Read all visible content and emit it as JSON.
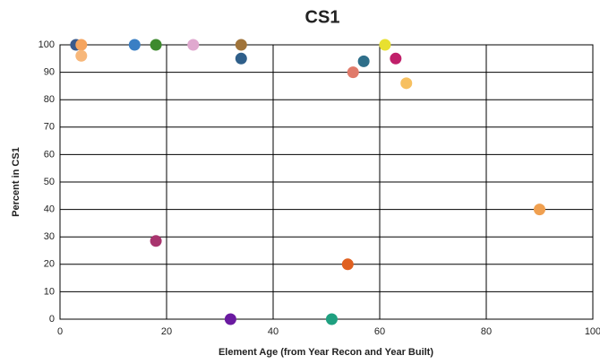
{
  "chart_data": {
    "type": "scatter",
    "title": "CS1",
    "x_label": "Element Age (from Year Recon and Year Built)",
    "y_label": "Percent in CS1",
    "x": [
      3,
      4,
      4,
      14,
      18,
      25,
      34,
      34,
      18,
      32,
      51,
      54,
      55,
      57,
      61,
      63,
      65,
      90
    ],
    "y": [
      100,
      100,
      96,
      100,
      100,
      100,
      100,
      95,
      28.5,
      0,
      0,
      20,
      90,
      94,
      100,
      95,
      86,
      40
    ],
    "colors": [
      "#3b5b8c",
      "#f5a45e",
      "#f7b77a",
      "#3a7fc4",
      "#3d8a2e",
      "#e0a9cf",
      "#a0743a",
      "#2f5f8a",
      "#a8346e",
      "#6a1aa0",
      "#1fa080",
      "#e06020",
      "#e07a6a",
      "#2f6f8a",
      "#e8e030",
      "#c0206a",
      "#f7c060",
      "#f0a050"
    ],
    "xlim": [
      0,
      100
    ],
    "xticks": [
      0,
      20,
      40,
      60,
      80,
      100
    ],
    "ylim": [
      0,
      100
    ],
    "yticks": [
      0,
      10,
      20,
      30,
      40,
      50,
      60,
      70,
      80,
      90,
      100
    ],
    "grid": true
  }
}
